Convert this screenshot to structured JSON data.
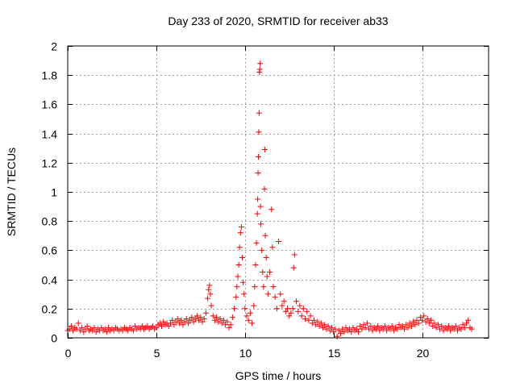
{
  "chart_data": {
    "type": "scatter",
    "title": "Day 233 of 2020, SRMTID for receiver ab33",
    "xlabel": "GPS time / hours",
    "ylabel": "SRMTID / TECUs",
    "xlim": [
      0,
      23.75
    ],
    "ylim": [
      0,
      2
    ],
    "xticks": [
      0,
      5,
      10,
      15,
      20
    ],
    "xtick_labels": [
      "0",
      "5",
      "10",
      "15",
      "20"
    ],
    "yticks": [
      0,
      0.2,
      0.4,
      0.6,
      0.8,
      1,
      1.2,
      1.4,
      1.6,
      1.8,
      2
    ],
    "ytick_labels": [
      "0",
      "0.2",
      "0.4",
      "0.6",
      "0.8",
      "1",
      "1.2",
      "1.4",
      "1.6",
      "1.8",
      "2"
    ],
    "grid": true,
    "marker": "+",
    "color": "#ff0000",
    "series": [
      {
        "name": "SRMTID",
        "points": [
          [
            0.0,
            0.05
          ],
          [
            0.1,
            0.06
          ],
          [
            0.2,
            0.08
          ],
          [
            0.3,
            0.05
          ],
          [
            0.4,
            0.07
          ],
          [
            0.5,
            0.06
          ],
          [
            0.6,
            0.1
          ],
          [
            0.7,
            0.05
          ],
          [
            0.8,
            0.07
          ],
          [
            0.9,
            0.04
          ],
          [
            1.0,
            0.06
          ],
          [
            1.1,
            0.08
          ],
          [
            1.2,
            0.05
          ],
          [
            1.3,
            0.06
          ],
          [
            1.4,
            0.05
          ],
          [
            1.5,
            0.07
          ],
          [
            1.6,
            0.04
          ],
          [
            1.7,
            0.06
          ],
          [
            1.8,
            0.05
          ],
          [
            1.9,
            0.07
          ],
          [
            2.0,
            0.05
          ],
          [
            2.1,
            0.06
          ],
          [
            2.2,
            0.04
          ],
          [
            2.3,
            0.07
          ],
          [
            2.4,
            0.05
          ],
          [
            2.5,
            0.06
          ],
          [
            2.6,
            0.05
          ],
          [
            2.7,
            0.07
          ],
          [
            2.8,
            0.06
          ],
          [
            2.9,
            0.05
          ],
          [
            3.0,
            0.06
          ],
          [
            3.1,
            0.05
          ],
          [
            3.2,
            0.07
          ],
          [
            3.3,
            0.06
          ],
          [
            3.4,
            0.05
          ],
          [
            3.5,
            0.07
          ],
          [
            3.6,
            0.06
          ],
          [
            3.7,
            0.05
          ],
          [
            3.8,
            0.08
          ],
          [
            3.9,
            0.06
          ],
          [
            4.0,
            0.07
          ],
          [
            4.1,
            0.06
          ],
          [
            4.2,
            0.08
          ],
          [
            4.3,
            0.06
          ],
          [
            4.4,
            0.07
          ],
          [
            4.5,
            0.08
          ],
          [
            4.6,
            0.06
          ],
          [
            4.7,
            0.07
          ],
          [
            4.8,
            0.08
          ],
          [
            4.9,
            0.06
          ],
          [
            5.0,
            0.07
          ],
          [
            5.1,
            0.09
          ],
          [
            5.2,
            0.1
          ],
          [
            5.3,
            0.08
          ],
          [
            5.4,
            0.11
          ],
          [
            5.5,
            0.09
          ],
          [
            5.6,
            0.1
          ],
          [
            5.7,
            0.08
          ],
          [
            5.8,
            0.1
          ],
          [
            5.9,
            0.12
          ],
          [
            6.0,
            0.09
          ],
          [
            6.1,
            0.11
          ],
          [
            6.2,
            0.13
          ],
          [
            6.3,
            0.1
          ],
          [
            6.4,
            0.12
          ],
          [
            6.5,
            0.09
          ],
          [
            6.6,
            0.11
          ],
          [
            6.7,
            0.13
          ],
          [
            6.8,
            0.1
          ],
          [
            6.9,
            0.12
          ],
          [
            7.0,
            0.14
          ],
          [
            7.1,
            0.11
          ],
          [
            7.2,
            0.13
          ],
          [
            7.3,
            0.15
          ],
          [
            7.4,
            0.12
          ],
          [
            7.5,
            0.14
          ],
          [
            7.6,
            0.11
          ],
          [
            7.7,
            0.13
          ],
          [
            7.8,
            0.17
          ],
          [
            7.9,
            0.27
          ],
          [
            7.95,
            0.33
          ],
          [
            8.0,
            0.36
          ],
          [
            8.05,
            0.3
          ],
          [
            8.1,
            0.22
          ],
          [
            8.2,
            0.15
          ],
          [
            8.3,
            0.12
          ],
          [
            8.4,
            0.14
          ],
          [
            8.5,
            0.11
          ],
          [
            8.6,
            0.13
          ],
          [
            8.7,
            0.1
          ],
          [
            8.8,
            0.12
          ],
          [
            8.9,
            0.09
          ],
          [
            9.0,
            0.11
          ],
          [
            9.1,
            0.07
          ],
          [
            9.2,
            0.09
          ],
          [
            9.3,
            0.14
          ],
          [
            9.4,
            0.2
          ],
          [
            9.5,
            0.28
          ],
          [
            9.55,
            0.35
          ],
          [
            9.6,
            0.42
          ],
          [
            9.65,
            0.5
          ],
          [
            9.7,
            0.62
          ],
          [
            9.75,
            0.72
          ],
          [
            9.8,
            0.76
          ],
          [
            9.85,
            0.55
          ],
          [
            9.9,
            0.38
          ],
          [
            9.95,
            0.3
          ],
          [
            10.0,
            0.2
          ],
          [
            10.1,
            0.15
          ],
          [
            10.2,
            0.12
          ],
          [
            10.3,
            0.17
          ],
          [
            10.4,
            0.1
          ],
          [
            10.5,
            0.22
          ],
          [
            10.55,
            0.35
          ],
          [
            10.6,
            0.5
          ],
          [
            10.65,
            0.65
          ],
          [
            10.7,
            0.85
          ],
          [
            10.72,
            0.95
          ],
          [
            10.74,
            1.13
          ],
          [
            10.76,
            1.24
          ],
          [
            10.78,
            1.41
          ],
          [
            10.8,
            1.54
          ],
          [
            10.82,
            1.82
          ],
          [
            10.84,
            1.84
          ],
          [
            10.86,
            1.88
          ],
          [
            10.88,
            0.9
          ],
          [
            10.9,
            0.78
          ],
          [
            10.95,
            0.6
          ],
          [
            11.0,
            0.45
          ],
          [
            11.05,
            0.35
          ],
          [
            11.1,
            1.02
          ],
          [
            11.12,
            1.29
          ],
          [
            11.15,
            0.7
          ],
          [
            11.2,
            0.55
          ],
          [
            11.25,
            0.42
          ],
          [
            11.3,
            0.3
          ],
          [
            11.4,
            0.45
          ],
          [
            11.5,
            0.88
          ],
          [
            11.55,
            0.62
          ],
          [
            11.6,
            0.35
          ],
          [
            11.7,
            0.28
          ],
          [
            11.8,
            0.2
          ],
          [
            11.9,
            0.66
          ],
          [
            12.0,
            0.3
          ],
          [
            12.1,
            0.22
          ],
          [
            12.2,
            0.25
          ],
          [
            12.3,
            0.18
          ],
          [
            12.4,
            0.2
          ],
          [
            12.5,
            0.15
          ],
          [
            12.6,
            0.17
          ],
          [
            12.7,
            0.2
          ],
          [
            12.75,
            0.48
          ],
          [
            12.8,
            0.57
          ],
          [
            12.9,
            0.25
          ],
          [
            13.0,
            0.18
          ],
          [
            13.1,
            0.22
          ],
          [
            13.2,
            0.15
          ],
          [
            13.3,
            0.2
          ],
          [
            13.4,
            0.13
          ],
          [
            13.5,
            0.18
          ],
          [
            13.6,
            0.12
          ],
          [
            13.7,
            0.15
          ],
          [
            13.8,
            0.1
          ],
          [
            13.9,
            0.12
          ],
          [
            14.0,
            0.09
          ],
          [
            14.1,
            0.11
          ],
          [
            14.2,
            0.08
          ],
          [
            14.3,
            0.1
          ],
          [
            14.4,
            0.07
          ],
          [
            14.5,
            0.09
          ],
          [
            14.6,
            0.06
          ],
          [
            14.7,
            0.08
          ],
          [
            14.8,
            0.05
          ],
          [
            14.9,
            0.07
          ],
          [
            15.0,
            0.04
          ],
          [
            15.1,
            0.06
          ],
          [
            15.2,
            0.01
          ],
          [
            15.3,
            0.05
          ],
          [
            15.4,
            0.03
          ],
          [
            15.5,
            0.06
          ],
          [
            15.6,
            0.04
          ],
          [
            15.7,
            0.07
          ],
          [
            15.8,
            0.05
          ],
          [
            15.9,
            0.06
          ],
          [
            16.0,
            0.04
          ],
          [
            16.1,
            0.07
          ],
          [
            16.2,
            0.05
          ],
          [
            16.3,
            0.06
          ],
          [
            16.4,
            0.04
          ],
          [
            16.5,
            0.08
          ],
          [
            16.6,
            0.06
          ],
          [
            16.7,
            0.09
          ],
          [
            16.8,
            0.07
          ],
          [
            16.9,
            0.1
          ],
          [
            17.0,
            0.06
          ],
          [
            17.1,
            0.08
          ],
          [
            17.2,
            0.05
          ],
          [
            17.3,
            0.07
          ],
          [
            17.4,
            0.06
          ],
          [
            17.5,
            0.08
          ],
          [
            17.6,
            0.05
          ],
          [
            17.7,
            0.07
          ],
          [
            17.8,
            0.06
          ],
          [
            17.9,
            0.08
          ],
          [
            18.0,
            0.05
          ],
          [
            18.1,
            0.07
          ],
          [
            18.2,
            0.06
          ],
          [
            18.3,
            0.08
          ],
          [
            18.4,
            0.05
          ],
          [
            18.5,
            0.07
          ],
          [
            18.6,
            0.06
          ],
          [
            18.7,
            0.09
          ],
          [
            18.8,
            0.07
          ],
          [
            18.9,
            0.08
          ],
          [
            19.0,
            0.06
          ],
          [
            19.1,
            0.09
          ],
          [
            19.2,
            0.07
          ],
          [
            19.3,
            0.1
          ],
          [
            19.4,
            0.08
          ],
          [
            19.5,
            0.11
          ],
          [
            19.6,
            0.09
          ],
          [
            19.7,
            0.12
          ],
          [
            19.8,
            0.1
          ],
          [
            19.9,
            0.14
          ],
          [
            20.0,
            0.12
          ],
          [
            20.1,
            0.15
          ],
          [
            20.2,
            0.11
          ],
          [
            20.3,
            0.13
          ],
          [
            20.4,
            0.1
          ],
          [
            20.5,
            0.12
          ],
          [
            20.6,
            0.08
          ],
          [
            20.7,
            0.1
          ],
          [
            20.8,
            0.07
          ],
          [
            20.9,
            0.09
          ],
          [
            21.0,
            0.06
          ],
          [
            21.1,
            0.08
          ],
          [
            21.2,
            0.05
          ],
          [
            21.3,
            0.07
          ],
          [
            21.4,
            0.06
          ],
          [
            21.5,
            0.08
          ],
          [
            21.6,
            0.05
          ],
          [
            21.7,
            0.07
          ],
          [
            21.8,
            0.06
          ],
          [
            21.9,
            0.08
          ],
          [
            22.0,
            0.05
          ],
          [
            22.1,
            0.07
          ],
          [
            22.2,
            0.06
          ],
          [
            22.3,
            0.09
          ],
          [
            22.4,
            0.07
          ],
          [
            22.5,
            0.1
          ],
          [
            22.6,
            0.12
          ],
          [
            22.7,
            0.07
          ],
          [
            22.8,
            0.06
          ]
        ]
      }
    ]
  }
}
